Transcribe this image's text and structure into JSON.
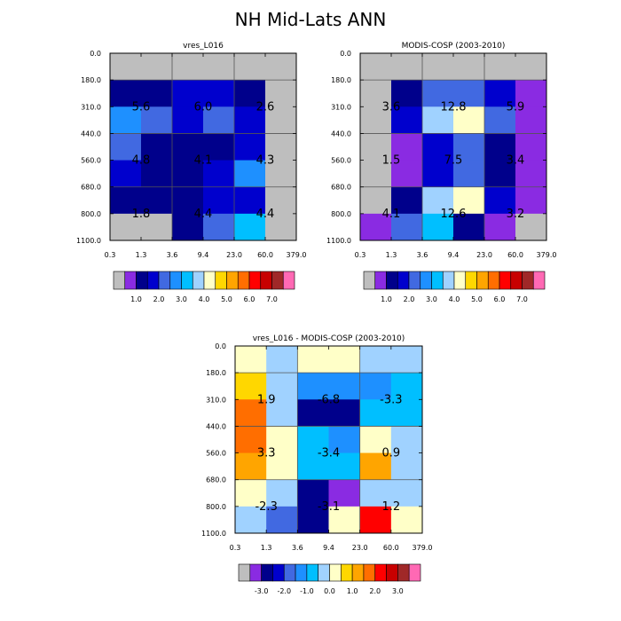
{
  "page_title": "NH Mid-Lats ANN",
  "x_ticks": [
    "0.3",
    "1.3",
    "3.6",
    "9.4",
    "23.0",
    "60.0",
    "379.0"
  ],
  "y_ticks": [
    "0.0",
    "180.0",
    "310.0",
    "440.0",
    "560.0",
    "680.0",
    "800.0",
    "1100.0"
  ],
  "colors": {
    "missing": "#bebebe",
    "abs_palette": [
      "#8a2be2",
      "#00008b",
      "#0000cd",
      "#4169e1",
      "#1e90ff",
      "#00bfff",
      "#a0d2ff",
      "#ffffc8",
      "#ffd700",
      "#ffa500",
      "#ff6e00",
      "#ff0000",
      "#c80000",
      "#a02828",
      "#ff69b4"
    ],
    "diff_palette": [
      "#8a2be2",
      "#00008b",
      "#0000cd",
      "#4169e1",
      "#1e90ff",
      "#00bfff",
      "#a0d2ff",
      "#ffffc8",
      "#ffd700",
      "#ffa500",
      "#ff6e00",
      "#ff0000",
      "#c80000",
      "#a02828",
      "#ff69b4"
    ]
  },
  "colorbars": {
    "absolute": {
      "labels": [
        "1.0",
        "2.0",
        "3.0",
        "4.0",
        "5.0",
        "6.0",
        "7.0"
      ]
    },
    "difference": {
      "labels": [
        "-3.0",
        "-2.0",
        "-1.0",
        "0.0",
        "1.0",
        "2.0",
        "3.0"
      ]
    }
  },
  "chart_data": [
    {
      "type": "heatmap",
      "title": "vres_L016",
      "x_bins": [
        "0.3",
        "1.3",
        "3.6",
        "9.4",
        "23.0",
        "60.0",
        "379.0"
      ],
      "y_bins": [
        "0.0",
        "180.0",
        "310.0",
        "440.0",
        "560.0",
        "680.0",
        "800.0",
        "1100.0"
      ],
      "cells": [
        [
          "M",
          "M",
          "M",
          "M",
          "M",
          "M"
        ],
        [
          1,
          1,
          2,
          2,
          1,
          "M"
        ],
        [
          4,
          3,
          2,
          3,
          2,
          "M"
        ],
        [
          3,
          1,
          1,
          1,
          2,
          "M"
        ],
        [
          2,
          1,
          1,
          2,
          4,
          "M"
        ],
        [
          1,
          1,
          1,
          2,
          2,
          "M"
        ],
        [
          "M",
          "M",
          1,
          3,
          5,
          "M"
        ]
      ],
      "region_labels": [
        {
          "row": 1,
          "col": 0,
          "text": "5.6"
        },
        {
          "row": 1,
          "col": 2,
          "text": "6.0"
        },
        {
          "row": 1,
          "col": 4,
          "text": "2.6"
        },
        {
          "row": 3,
          "col": 0,
          "text": "4.8"
        },
        {
          "row": 3,
          "col": 2,
          "text": "4.1"
        },
        {
          "row": 3,
          "col": 4,
          "text": "4.3"
        },
        {
          "row": 5,
          "col": 0,
          "text": "1.8"
        },
        {
          "row": 5,
          "col": 2,
          "text": "4.4"
        },
        {
          "row": 5,
          "col": 4,
          "text": "4.4"
        }
      ]
    },
    {
      "type": "heatmap",
      "title": "MODIS-COSP (2003-2010)",
      "x_bins": [
        "0.3",
        "1.3",
        "3.6",
        "9.4",
        "23.0",
        "60.0",
        "379.0"
      ],
      "y_bins": [
        "0.0",
        "180.0",
        "310.0",
        "440.0",
        "560.0",
        "680.0",
        "800.0",
        "1100.0"
      ],
      "cells": [
        [
          "M",
          "M",
          "M",
          "M",
          "M",
          "M"
        ],
        [
          "M",
          1,
          3,
          3,
          2,
          0
        ],
        [
          "M",
          2,
          6,
          7,
          3,
          0
        ],
        [
          "M",
          0,
          2,
          3,
          1,
          0
        ],
        [
          "M",
          0,
          2,
          3,
          1,
          0
        ],
        [
          "M",
          1,
          6,
          7,
          2,
          0
        ],
        [
          0,
          3,
          5,
          1,
          0,
          "M"
        ]
      ],
      "region_labels": [
        {
          "row": 1,
          "col": 0,
          "text": "3.6"
        },
        {
          "row": 1,
          "col": 2,
          "text": "12.8"
        },
        {
          "row": 1,
          "col": 4,
          "text": "5.9"
        },
        {
          "row": 3,
          "col": 0,
          "text": "1.5"
        },
        {
          "row": 3,
          "col": 2,
          "text": "7.5"
        },
        {
          "row": 3,
          "col": 4,
          "text": "3.4"
        },
        {
          "row": 5,
          "col": 0,
          "text": "4.1"
        },
        {
          "row": 5,
          "col": 2,
          "text": "12.6"
        },
        {
          "row": 5,
          "col": 4,
          "text": "3.2"
        }
      ]
    },
    {
      "type": "heatmap",
      "title": "vres_L016 - MODIS-COSP (2003-2010)",
      "x_bins": [
        "0.3",
        "1.3",
        "3.6",
        "9.4",
        "23.0",
        "60.0",
        "379.0"
      ],
      "y_bins": [
        "0.0",
        "180.0",
        "310.0",
        "440.0",
        "560.0",
        "680.0",
        "800.0",
        "1100.0"
      ],
      "cells": [
        [
          7,
          6,
          7,
          7,
          6,
          6
        ],
        [
          8,
          6,
          4,
          4,
          4,
          5
        ],
        [
          10,
          6,
          1,
          1,
          5,
          5
        ],
        [
          10,
          7,
          5,
          4,
          7,
          6
        ],
        [
          9,
          7,
          5,
          5,
          9,
          6
        ],
        [
          7,
          6,
          1,
          0,
          6,
          6
        ],
        [
          6,
          3,
          1,
          7,
          11,
          7
        ]
      ],
      "region_labels": [
        {
          "row": 1,
          "col": 0,
          "text": "1.9"
        },
        {
          "row": 1,
          "col": 2,
          "text": "-6.8"
        },
        {
          "row": 1,
          "col": 4,
          "text": "-3.3"
        },
        {
          "row": 3,
          "col": 0,
          "text": "3.3"
        },
        {
          "row": 3,
          "col": 2,
          "text": "-3.4"
        },
        {
          "row": 3,
          "col": 4,
          "text": "0.9"
        },
        {
          "row": 5,
          "col": 0,
          "text": "-2.3"
        },
        {
          "row": 5,
          "col": 2,
          "text": "-3.1"
        },
        {
          "row": 5,
          "col": 4,
          "text": "1.2"
        }
      ]
    }
  ]
}
